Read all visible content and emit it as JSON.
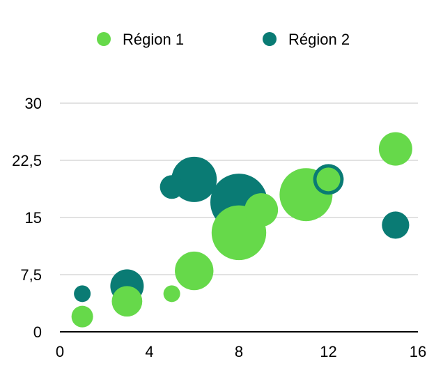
{
  "chart_data": {
    "type": "bubble",
    "title": "",
    "xlabel": "",
    "ylabel": "",
    "xlim": [
      0,
      16
    ],
    "ylim": [
      0,
      30
    ],
    "x_ticks": [
      "0",
      "4",
      "8",
      "12",
      "16"
    ],
    "y_ticks": [
      "0",
      "7,5",
      "15",
      "22,5",
      "30"
    ],
    "grid": "horizontal",
    "legend_position": "top",
    "series": [
      {
        "name": "Région 1",
        "color": "#66d94a",
        "points": [
          {
            "x": 1,
            "y": 2,
            "size": 5
          },
          {
            "x": 3,
            "y": 4,
            "size": 10
          },
          {
            "x": 5,
            "y": 5,
            "size": 3
          },
          {
            "x": 6,
            "y": 8,
            "size": 16
          },
          {
            "x": 8,
            "y": 13,
            "size": 32
          },
          {
            "x": 9,
            "y": 16,
            "size": 12
          },
          {
            "x": 11,
            "y": 18,
            "size": 30
          },
          {
            "x": 12,
            "y": 20,
            "size": 6
          },
          {
            "x": 15,
            "y": 24,
            "size": 12
          }
        ]
      },
      {
        "name": "Région 2",
        "color": "#0a7b74",
        "points": [
          {
            "x": 1,
            "y": 5,
            "size": 3
          },
          {
            "x": 3,
            "y": 6,
            "size": 12
          },
          {
            "x": 5,
            "y": 19,
            "size": 6
          },
          {
            "x": 6,
            "y": 20,
            "size": 22
          },
          {
            "x": 8,
            "y": 17,
            "size": 35
          },
          {
            "x": 12,
            "y": 20,
            "size": 10
          },
          {
            "x": 15,
            "y": 14,
            "size": 8
          }
        ]
      }
    ]
  }
}
